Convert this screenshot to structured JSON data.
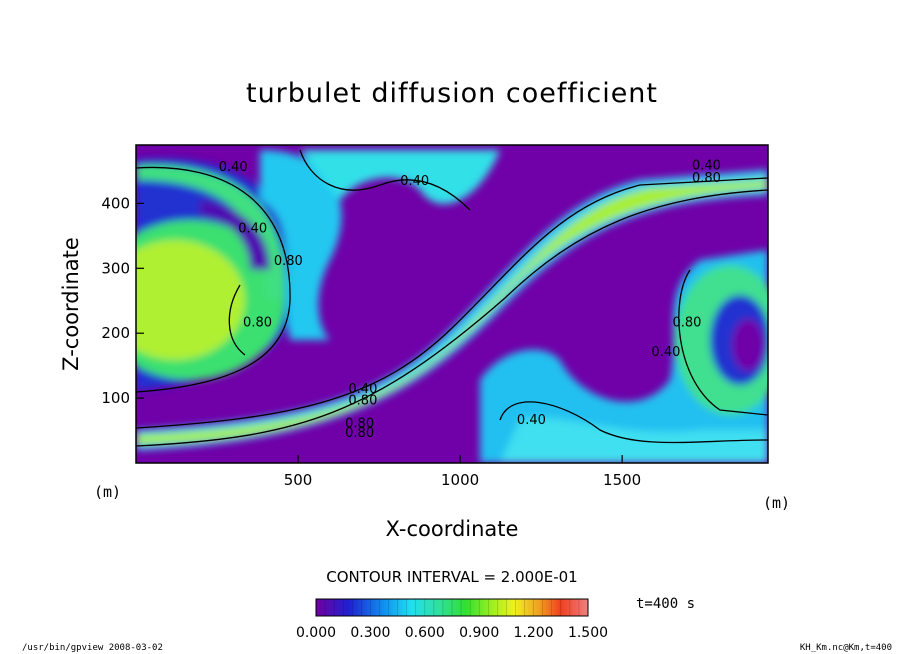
{
  "chart_data": {
    "type": "heatmap",
    "title": "turbulet diffusion coefficient",
    "xlabel": "X-coordinate",
    "ylabel": "Z-coordinate",
    "xunit": "(m)",
    "yunit": "(m)",
    "xlim": [
      0,
      1950
    ],
    "ylim": [
      0,
      490
    ],
    "x_ticks": [
      500,
      1000,
      1500
    ],
    "y_ticks": [
      100,
      200,
      300,
      400
    ],
    "contour_interval_text": "CONTOUR INTERVAL = 2.000E-01",
    "time_label": "t=400 s",
    "colorbar": {
      "vmin": 0.0,
      "vmax": 1.5,
      "tick_labels": [
        "0.000",
        "0.300",
        "0.600",
        "0.900",
        "1.200",
        "1.500"
      ],
      "tick_values": [
        0.0,
        0.3,
        0.6,
        0.9,
        1.2,
        1.5
      ]
    },
    "contour_labels": [
      {
        "text": "0.40",
        "x": 300,
        "z": 450
      },
      {
        "text": "0.40",
        "x": 860,
        "z": 428
      },
      {
        "text": "0.40",
        "x": 360,
        "z": 355
      },
      {
        "text": "0.80",
        "x": 470,
        "z": 305
      },
      {
        "text": "0.80",
        "x": 375,
        "z": 210
      },
      {
        "text": "0.40",
        "x": 1760,
        "z": 452
      },
      {
        "text": "0.80",
        "x": 1760,
        "z": 433
      },
      {
        "text": "0.80",
        "x": 1700,
        "z": 210
      },
      {
        "text": "0.40",
        "x": 1635,
        "z": 165
      },
      {
        "text": "0.40",
        "x": 700,
        "z": 108
      },
      {
        "text": "0.80",
        "x": 700,
        "z": 90
      },
      {
        "text": "0.80",
        "x": 690,
        "z": 55
      },
      {
        "text": "0.80",
        "x": 690,
        "z": 40
      },
      {
        "text": "0.40",
        "x": 1220,
        "z": 60
      }
    ],
    "grid": false
  },
  "footer": {
    "left": "/usr/bin/gpview   2008-03-02",
    "right": "KH_Km.nc@Km,t=400"
  }
}
